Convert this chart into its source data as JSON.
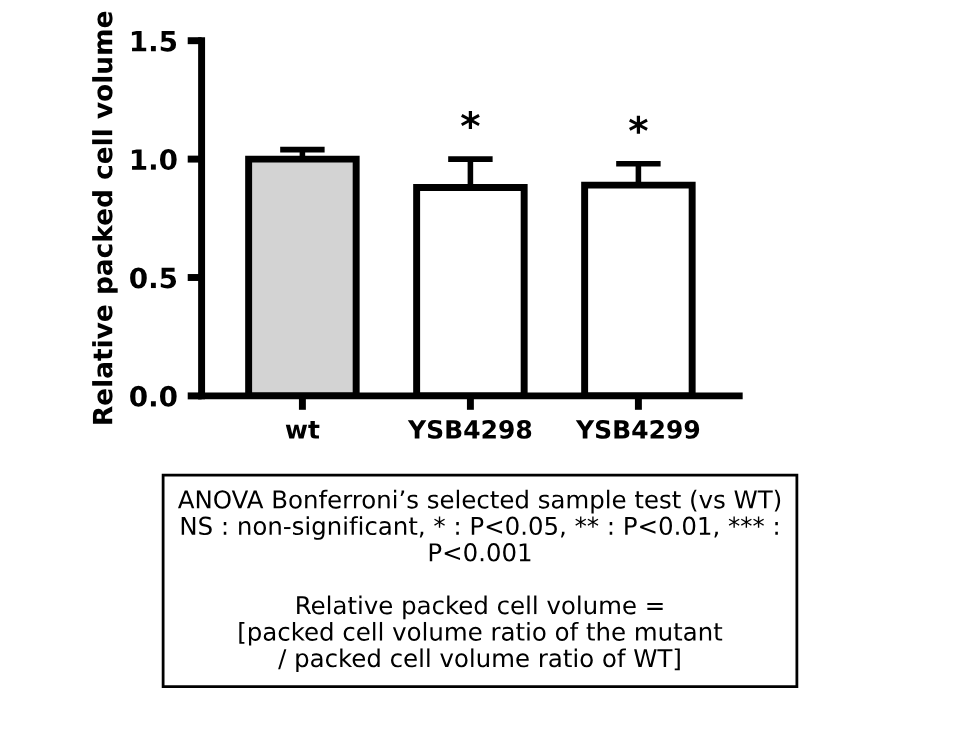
{
  "chart_data": {
    "type": "bar",
    "ylabel": "Relative packed cell volume",
    "categories": [
      "wt",
      "YSB4298",
      "YSB4299"
    ],
    "values": [
      1.0,
      0.88,
      0.89
    ],
    "colors": [
      "#d3d3d3",
      "#ffffff",
      "#ffffff"
    ],
    "errors": [
      [
        1.0,
        1.04
      ],
      [
        0.88,
        1.0
      ],
      [
        0.89,
        0.98
      ]
    ],
    "ylim": [
      0,
      1.5
    ],
    "yticks": [
      {
        "value": 0,
        "label": "0.0"
      },
      0.5,
      {
        "value": 1,
        "label": "1.0"
      },
      1.5
    ],
    "grid": false,
    "annotations": [
      {
        "text": "*",
        "x": "YSB4298",
        "y": 1.0
      },
      {
        "text": "*",
        "x": "YSB4299",
        "y": 0.98
      },
      "ANOVA Bonferroni’s selected sample test (vs WT)\nNS : non-significant, * : P<0.05, ** : P<0.01, *** :\nP<0.001\n\nRelative packed cell volume =\n[packed cell volume ratio of the mutant\n/ packed cell volume ratio of WT]"
    ]
  }
}
